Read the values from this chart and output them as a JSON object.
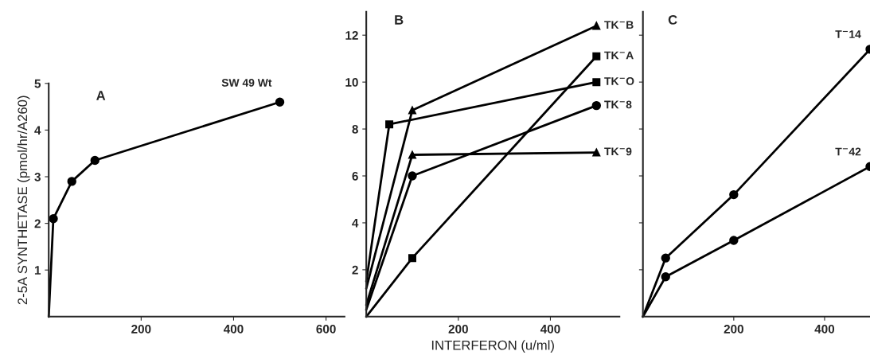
{
  "chart_data": [
    {
      "type": "line",
      "title": "A",
      "ylabel": "2-5A SYNTHETASE (pmol/hr/A260)",
      "xlim": [
        0,
        640
      ],
      "xticks": [
        200,
        400,
        600
      ],
      "ylim": [
        0,
        5
      ],
      "yticks": [
        1,
        2,
        3,
        4,
        5
      ],
      "grid": false,
      "legend": false,
      "series": [
        {
          "name": "SW 49 Wt",
          "color": "#000000",
          "marker": "circle",
          "x": [
            0,
            10,
            50,
            100,
            500
          ],
          "values": [
            0,
            2.1,
            2.9,
            3.35,
            4.6
          ]
        }
      ]
    },
    {
      "type": "line",
      "title": "B",
      "xlabel": "INTERFERON (u/ml)",
      "xlim": [
        0,
        550
      ],
      "xticks": [
        200,
        400
      ],
      "ylim": [
        0,
        13
      ],
      "yticks": [
        2,
        4,
        6,
        8,
        10,
        12
      ],
      "grid": false,
      "legend": false,
      "series": [
        {
          "name": "TK$^{−}$B",
          "color": "#000000",
          "marker": "triangle",
          "x": [
            0,
            100,
            500
          ],
          "values": [
            1.2,
            8.8,
            12.4
          ]
        },
        {
          "name": "TK$^{−}$A",
          "color": "#000000",
          "marker": "square",
          "x": [
            0,
            100,
            500
          ],
          "values": [
            0,
            2.5,
            11.1
          ]
        },
        {
          "name": "TK$^{−}$O",
          "color": "#000000",
          "marker": "square",
          "x": [
            0,
            50,
            500
          ],
          "values": [
            1.5,
            8.2,
            10
          ]
        },
        {
          "name": "TK$^{−}$8",
          "color": "#000000",
          "marker": "circle",
          "x": [
            0,
            100,
            500
          ],
          "values": [
            0.3,
            6,
            9
          ]
        },
        {
          "name": "TK$^{−}$9",
          "color": "#000000",
          "marker": "triangle",
          "x": [
            0,
            100,
            500
          ],
          "values": [
            0.5,
            6.9,
            7
          ]
        }
      ]
    },
    {
      "type": "line",
      "title": "C",
      "xlim": [
        0,
        500
      ],
      "xticks": [
        200,
        400
      ],
      "ylim": [
        0,
        13
      ],
      "yticks": [
        {
          "value": 2,
          "label": null
        },
        {
          "value": 4,
          "label": null
        },
        {
          "value": 6,
          "label": null
        },
        {
          "value": 8,
          "label": null
        },
        {
          "value": 10,
          "label": null
        },
        {
          "value": 12,
          "label": null
        }
      ],
      "tick_labels": "x",
      "grid": false,
      "legend": false,
      "series": [
        {
          "name": "T$^{−}$14",
          "color": "#000000",
          "marker": "circle",
          "x": [
            0,
            50,
            200,
            500
          ],
          "values": [
            0,
            2.5,
            5.2,
            11.4
          ]
        },
        {
          "name": "T$^{−}$42",
          "color": "#000000",
          "marker": "circle",
          "x": [
            0,
            50,
            200,
            500
          ],
          "values": [
            0,
            1.7,
            3.25,
            6.4
          ]
        }
      ]
    }
  ]
}
